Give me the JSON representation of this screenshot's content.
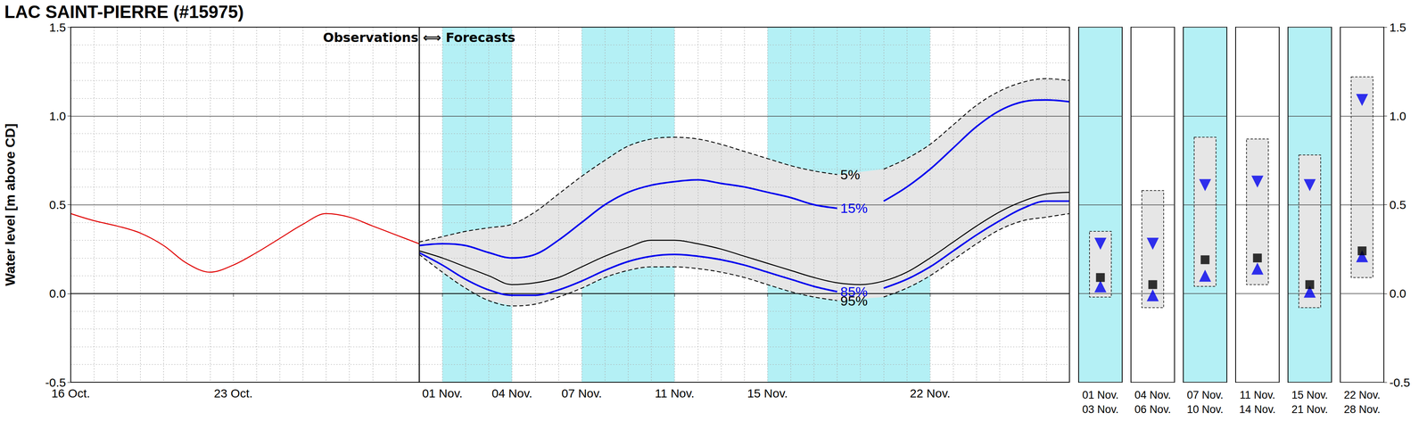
{
  "chart_data": [
    {
      "type": "line",
      "title": "LAC SAINT-PIERRE (#15975)",
      "ylabel": "Water level [m above CD]",
      "annotation": "Observations ⟺ Forecasts",
      "categories": [
        "16 Oct.",
        null,
        null,
        null,
        null,
        null,
        null,
        "23 Oct.",
        null,
        null,
        null,
        null,
        null,
        null,
        null,
        null,
        "01 Nov.",
        null,
        null,
        "04 Nov.",
        null,
        null,
        "07 Nov.",
        null,
        null,
        null,
        "11 Nov.",
        null,
        null,
        null,
        "15 Nov.",
        null,
        null,
        null,
        null,
        null,
        null,
        "22 Nov.",
        null,
        null,
        null,
        null,
        null,
        null
      ],
      "ylim": [
        -0.5,
        1.5
      ],
      "yticks": [
        -0.5,
        {
          "value": 0,
          "label": "0.0"
        },
        0.5,
        {
          "value": 1,
          "label": "1.0"
        },
        1.5
      ],
      "grid": true,
      "shaded_periods": [
        [
          "01 Nov.",
          "04 Nov."
        ],
        [
          "07 Nov.",
          "11 Nov."
        ],
        [
          "15 Nov.",
          "22 Nov."
        ]
      ],
      "shade_color": "#b4f0f5",
      "band": {
        "upper": "5%",
        "lower": "95%",
        "color": "#e6e6e6"
      },
      "series": [
        {
          "color": "#e00000",
          "line_style": "solid",
          "values": [
            0.45,
            0.41,
            0.38,
            0.34,
            0.27,
            0.17,
            0.12,
            0.16,
            0.23,
            0.31,
            0.39,
            0.45,
            0.43,
            0.38,
            0.33,
            0.28,
            null,
            null,
            null,
            null,
            null,
            null,
            null,
            null,
            null,
            null,
            null,
            null,
            null,
            null,
            null,
            null,
            null,
            null,
            null,
            null,
            null,
            null,
            null,
            null,
            null,
            null,
            null,
            null
          ]
        },
        {
          "color": "#000000",
          "line_style": "solid",
          "values": [
            null,
            null,
            null,
            null,
            null,
            null,
            null,
            null,
            null,
            null,
            null,
            null,
            null,
            null,
            null,
            0.24,
            0.2,
            0.15,
            0.1,
            0.05,
            0.06,
            0.09,
            0.15,
            0.21,
            0.26,
            0.3,
            0.3,
            0.28,
            0.25,
            0.21,
            0.17,
            0.13,
            0.09,
            0.06,
            0.05,
            0.07,
            0.12,
            0.2,
            0.29,
            0.38,
            0.46,
            0.52,
            0.56,
            0.57
          ]
        },
        {
          "name": "5%",
          "color": "#000000",
          "line_style": "dashed",
          "values": [
            null,
            null,
            null,
            null,
            null,
            null,
            null,
            null,
            null,
            null,
            null,
            null,
            null,
            null,
            null,
            0.29,
            0.32,
            0.35,
            0.37,
            0.39,
            0.46,
            0.56,
            0.66,
            0.75,
            0.83,
            0.87,
            0.88,
            0.87,
            0.84,
            0.8,
            0.76,
            0.72,
            0.69,
            0.67,
            null,
            0.7,
            0.76,
            0.84,
            0.95,
            1.06,
            1.14,
            1.19,
            1.21,
            1.2
          ]
        },
        {
          "name": "15%",
          "color": "#0000ee",
          "line_style": "solid",
          "values": [
            null,
            null,
            null,
            null,
            null,
            null,
            null,
            null,
            null,
            null,
            null,
            null,
            null,
            null,
            null,
            0.27,
            0.28,
            0.27,
            0.23,
            0.2,
            0.22,
            0.3,
            0.4,
            0.5,
            0.57,
            0.61,
            0.63,
            0.64,
            0.62,
            0.6,
            0.57,
            0.54,
            0.5,
            0.48,
            null,
            0.52,
            0.6,
            0.7,
            0.82,
            0.94,
            1.03,
            1.08,
            1.09,
            1.08
          ]
        },
        {
          "name": "85%",
          "color": "#0000ee",
          "line_style": "solid",
          "values": [
            null,
            null,
            null,
            null,
            null,
            null,
            null,
            null,
            null,
            null,
            null,
            null,
            null,
            null,
            null,
            0.23,
            0.16,
            0.08,
            0.02,
            -0.01,
            -0.01,
            0.02,
            0.07,
            0.13,
            0.18,
            0.21,
            0.22,
            0.21,
            0.19,
            0.16,
            0.12,
            0.08,
            0.04,
            0.01,
            null,
            0.03,
            0.08,
            0.15,
            0.24,
            0.33,
            0.41,
            0.48,
            0.52,
            0.52
          ]
        },
        {
          "name": "95%",
          "color": "#000000",
          "line_style": "dashed",
          "values": [
            null,
            null,
            null,
            null,
            null,
            null,
            null,
            null,
            null,
            null,
            null,
            null,
            null,
            null,
            null,
            0.22,
            0.12,
            0.03,
            -0.04,
            -0.07,
            -0.06,
            -0.02,
            0.03,
            0.09,
            0.13,
            0.15,
            0.15,
            0.14,
            0.12,
            0.09,
            0.05,
            0.01,
            -0.02,
            -0.04,
            null,
            -0.02,
            0.03,
            0.1,
            0.19,
            0.28,
            0.36,
            0.41,
            0.43,
            0.45
          ]
        }
      ]
    },
    {
      "type": "box",
      "categories": [
        "01 Nov.\n03 Nov.",
        "04 Nov.\n06 Nov.",
        "07 Nov.\n10 Nov.",
        "11 Nov.\n14 Nov.",
        "15 Nov.\n21 Nov.",
        "22 Nov.\n28 Nov."
      ],
      "ylim": [
        -0.5,
        1.5
      ],
      "yticks": [
        -0.5,
        {
          "value": 0,
          "label": "0.0"
        },
        0.5,
        {
          "value": 1,
          "label": "1.0"
        },
        1.5
      ],
      "grid": true,
      "box": {
        "low": [
          -0.02,
          -0.08,
          0.04,
          0.05,
          -0.08,
          0.09
        ],
        "high": [
          0.35,
          0.58,
          0.88,
          0.87,
          0.78,
          1.22
        ],
        "color": "#e6e6e6"
      },
      "series": [
        {
          "marker": "triangle-down",
          "color": "#0000ee",
          "values": [
            0.28,
            0.28,
            0.61,
            0.63,
            0.61,
            1.09
          ]
        },
        {
          "marker": "triangle-up",
          "color": "#0000ee",
          "values": [
            0.04,
            -0.01,
            0.1,
            0.14,
            0.01,
            0.21
          ]
        },
        {
          "marker": "square",
          "color": "#000000",
          "values": [
            0.09,
            0.05,
            0.19,
            0.2,
            0.05,
            0.24
          ]
        }
      ]
    }
  ]
}
